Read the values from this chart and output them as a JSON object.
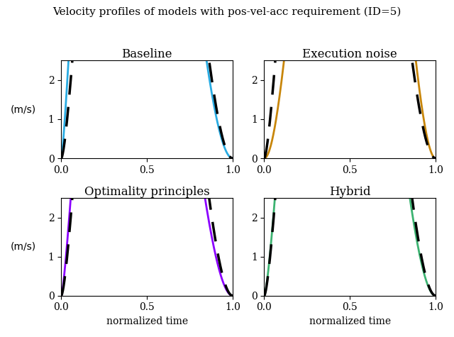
{
  "title": "Velocity profiles of models with pos-vel-acc requirement (ID=5)",
  "subplots": [
    {
      "title": "Baseline",
      "color": "#29ABE2"
    },
    {
      "title": "Execution noise",
      "color": "#C8860A"
    },
    {
      "title": "Optimality principles",
      "color": "#8B00FF"
    },
    {
      "title": "Hybrid",
      "color": "#3CB371"
    }
  ],
  "ylabel": "(m/s)",
  "xlabel": "normalized time",
  "ylim": [
    0,
    2.5
  ],
  "xlim": [
    0,
    1
  ],
  "yticks": [
    0,
    1,
    2
  ],
  "xticks": [
    0,
    0.5,
    1
  ],
  "reference_color": "#000000",
  "reference_lw": 2.5,
  "curve_lw": 2.0,
  "dashed_pattern": [
    8,
    5
  ]
}
